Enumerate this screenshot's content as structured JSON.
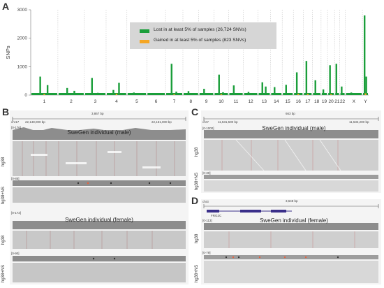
{
  "panels": {
    "A": "A",
    "B": "B",
    "C": "C",
    "D": "D"
  },
  "chart_data": {
    "type": "bar",
    "ylabel": "SNPs",
    "xlabel": "",
    "ylim": [
      0,
      3000
    ],
    "yticks": [
      0,
      1000,
      2000,
      3000
    ],
    "chromosomes": [
      "1",
      "2",
      "3",
      "4",
      "5",
      "6",
      "7",
      "8",
      "9",
      "10",
      "11",
      "12",
      "13",
      "14",
      "15",
      "16",
      "17",
      "18",
      "19",
      "20",
      "21",
      "22",
      "X",
      "Y"
    ],
    "legend_placement": "top-center",
    "series": [
      {
        "name": "Lost in at least 5% of samples (26,724 SNVs)",
        "color": "#1a9e3a",
        "peaks": [
          {
            "chrom": "1",
            "value": 650
          },
          {
            "chrom": "1",
            "value": 350
          },
          {
            "chrom": "2",
            "value": 250
          },
          {
            "chrom": "2",
            "value": 150
          },
          {
            "chrom": "3",
            "value": 600
          },
          {
            "chrom": "3",
            "value": 80
          },
          {
            "chrom": "4",
            "value": 180
          },
          {
            "chrom": "4",
            "value": 430
          },
          {
            "chrom": "5",
            "value": 90
          },
          {
            "chrom": "6",
            "value": 60
          },
          {
            "chrom": "7",
            "value": 1100
          },
          {
            "chrom": "7",
            "value": 120
          },
          {
            "chrom": "8",
            "value": 140
          },
          {
            "chrom": "9",
            "value": 220
          },
          {
            "chrom": "10",
            "value": 720
          },
          {
            "chrom": "10",
            "value": 100
          },
          {
            "chrom": "11",
            "value": 340
          },
          {
            "chrom": "12",
            "value": 110
          },
          {
            "chrom": "13",
            "value": 450
          },
          {
            "chrom": "13",
            "value": 300
          },
          {
            "chrom": "14",
            "value": 280
          },
          {
            "chrom": "15",
            "value": 360
          },
          {
            "chrom": "16",
            "value": 800
          },
          {
            "chrom": "17",
            "value": 1200
          },
          {
            "chrom": "18",
            "value": 520
          },
          {
            "chrom": "19",
            "value": 200
          },
          {
            "chrom": "20",
            "value": 1050
          },
          {
            "chrom": "21",
            "value": 1100
          },
          {
            "chrom": "22",
            "value": 300
          },
          {
            "chrom": "X",
            "value": 90
          },
          {
            "chrom": "Y",
            "value": 2800
          },
          {
            "chrom": "Y",
            "value": 650
          }
        ]
      },
      {
        "name": "Gained in at least 5% of samples (823 SNVs)",
        "color": "#f5a623",
        "peaks": [
          {
            "chrom": "1",
            "value": 40
          },
          {
            "chrom": "4",
            "value": 50
          },
          {
            "chrom": "7",
            "value": 30
          },
          {
            "chrom": "10",
            "value": 35
          },
          {
            "chrom": "16",
            "value": 45
          },
          {
            "chrom": "17",
            "value": 40
          },
          {
            "chrom": "20",
            "value": 30
          },
          {
            "chrom": "Y",
            "value": 60
          }
        ]
      }
    ]
  },
  "panel_b": {
    "chrom": "chr17",
    "span": "3,867 bp",
    "start": "22,148,000 bp",
    "end": "22,151,000 bp",
    "male_title": "SweGen individual (male)",
    "female_title": "SweGen individual (female)",
    "range_hg38_male": "[0-176]",
    "range_ns_male": "[0-85]",
    "range_hg38_female": "[0-173]",
    "range_ns_female": "[0-90]",
    "track_hg38": "hg38",
    "track_ns": "hg38+NS"
  },
  "panel_c": {
    "chrom": "chrY",
    "span": "663 bp",
    "start": "11,531,500 bp",
    "end": "11,532,200 bp",
    "title": "SweGen individual (male)",
    "range_hg38": "[0-1000]",
    "range_ns": "[0-30]",
    "track_hg38": "hg38",
    "track_ns": "hg38+NS"
  },
  "panel_d": {
    "chrom": "chr3",
    "span": "3,648 bp",
    "gene": "FRG2C",
    "title": "SweGen individual (female)",
    "range_hg38": "[0-113]",
    "range_ns": "[0-79]",
    "track_hg38": "hg38",
    "track_ns": "hg38+NS"
  }
}
